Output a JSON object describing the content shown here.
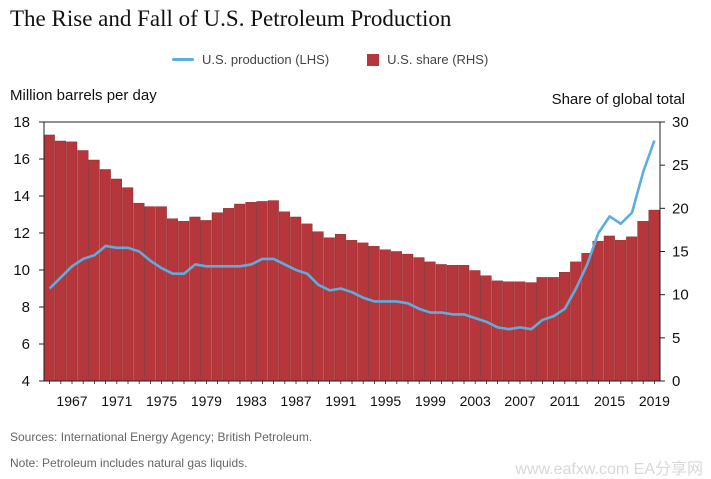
{
  "title": "The Rise and Fall of U.S. Petroleum Production",
  "legend": {
    "line_label": "U.S. production (LHS)",
    "bar_label": "U.S. share (RHS)"
  },
  "footnotes": {
    "sources": "Sources: International Energy Agency; British Petroleum.",
    "note": "Note: Petroleum includes natural gas liquids."
  },
  "watermark": "www.eafxw.com   EA分享网",
  "colors": {
    "line": "#5aaee0",
    "bar": "#b5373c",
    "bar_edge": "#7d2226"
  },
  "chart_data": {
    "type": "bar",
    "categories": [
      "1965",
      "1966",
      "1967",
      "1968",
      "1969",
      "1970",
      "1971",
      "1972",
      "1973",
      "1974",
      "1975",
      "1976",
      "1977",
      "1978",
      "1979",
      "1980",
      "1981",
      "1982",
      "1983",
      "1984",
      "1985",
      "1986",
      "1987",
      "1988",
      "1989",
      "1990",
      "1991",
      "1992",
      "1993",
      "1994",
      "1995",
      "1996",
      "1997",
      "1998",
      "1999",
      "2000",
      "2001",
      "2002",
      "2003",
      "2004",
      "2005",
      "2006",
      "2007",
      "2008",
      "2009",
      "2010",
      "2011",
      "2012",
      "2013",
      "2014",
      "2015",
      "2016",
      "2017",
      "2018",
      "2019"
    ],
    "x_tick_labels": [
      "1967",
      "1971",
      "1975",
      "1979",
      "1983",
      "1987",
      "1991",
      "1995",
      "1999",
      "2003",
      "2007",
      "2011",
      "2015",
      "2019"
    ],
    "series": [
      {
        "name": "U.S. share (RHS)",
        "type": "bar",
        "axis": "right",
        "values": [
          28.5,
          27.8,
          27.7,
          26.7,
          25.6,
          24.5,
          23.4,
          22.4,
          20.6,
          20.2,
          20.2,
          18.8,
          18.5,
          19.0,
          18.6,
          19.5,
          20.0,
          20.5,
          20.7,
          20.8,
          20.9,
          19.6,
          19.0,
          18.2,
          17.3,
          16.6,
          17.0,
          16.3,
          16.0,
          15.6,
          15.2,
          15.0,
          14.7,
          14.3,
          13.8,
          13.5,
          13.4,
          13.4,
          12.8,
          12.2,
          11.6,
          11.5,
          11.5,
          11.4,
          12.0,
          12.0,
          12.6,
          13.8,
          14.8,
          16.2,
          16.8,
          16.3,
          16.7,
          18.5,
          19.8
        ]
      },
      {
        "name": "U.S. production (LHS)",
        "type": "line",
        "axis": "left",
        "values": [
          9.0,
          9.6,
          10.2,
          10.6,
          10.8,
          11.3,
          11.2,
          11.2,
          11.0,
          10.5,
          10.1,
          9.8,
          9.8,
          10.3,
          10.2,
          10.2,
          10.2,
          10.2,
          10.3,
          10.6,
          10.6,
          10.3,
          10.0,
          9.8,
          9.2,
          8.9,
          9.0,
          8.8,
          8.5,
          8.3,
          8.3,
          8.3,
          8.2,
          7.9,
          7.7,
          7.7,
          7.6,
          7.6,
          7.4,
          7.2,
          6.9,
          6.8,
          6.9,
          6.8,
          7.3,
          7.5,
          7.9,
          9.0,
          10.3,
          12.0,
          12.9,
          12.5,
          13.1,
          15.3,
          17.0
        ]
      }
    ],
    "ylabel_left": "Million barrels per day",
    "ylabel_right": "Share of global total",
    "ylim_left": [
      4,
      18
    ],
    "ylim_right": [
      0,
      30
    ],
    "yticks_left": [
      "4",
      "6",
      "8",
      "10",
      "12",
      "14",
      "16",
      "18"
    ],
    "yticks_right": [
      "0",
      "5",
      "10",
      "15",
      "20",
      "25",
      "30"
    ],
    "legend_position": "top-center",
    "grid": false
  }
}
